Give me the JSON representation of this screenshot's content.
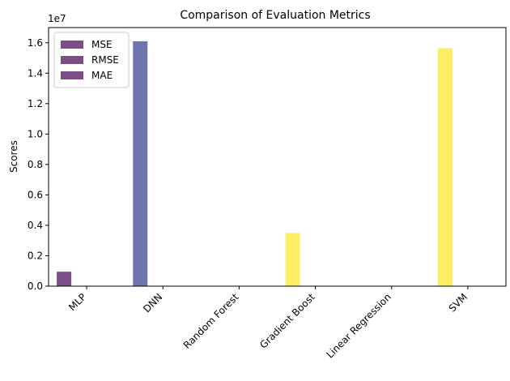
{
  "chart_data": {
    "type": "bar",
    "title": "Comparison of Evaluation Metrics",
    "xlabel": "",
    "ylabel": "Scores",
    "scale_label": "1e7",
    "categories": [
      "MLP",
      "DNN",
      "Random Forest",
      "Gradient Boost",
      "Linear Regression",
      "SVM"
    ],
    "ylim": [
      0,
      17000000
    ],
    "yticks": [
      0,
      2000000,
      4000000,
      6000000,
      8000000,
      10000000,
      12000000,
      14000000,
      16000000
    ],
    "ytick_labels": [
      "0.0",
      "0.2",
      "0.4",
      "0.6",
      "0.8",
      "1.0",
      "1.2",
      "1.4",
      "1.6"
    ],
    "series": [
      {
        "name": "MSE",
        "values": [
          950000,
          16100000,
          0,
          3500000,
          0,
          15650000
        ]
      },
      {
        "name": "RMSE",
        "values": [
          975,
          4012,
          0,
          1871,
          0,
          3956
        ]
      },
      {
        "name": "MAE",
        "values": [
          700,
          3100,
          0,
          1400,
          0,
          3000
        ]
      }
    ],
    "bar_colors": [
      "#440154",
      "#31398c",
      "#26a683",
      "#fde725",
      "#fde725",
      "#fde725"
    ],
    "legend_color": "#440154",
    "bar_alpha": 0.7,
    "legend": "upper-left",
    "grid": false
  }
}
